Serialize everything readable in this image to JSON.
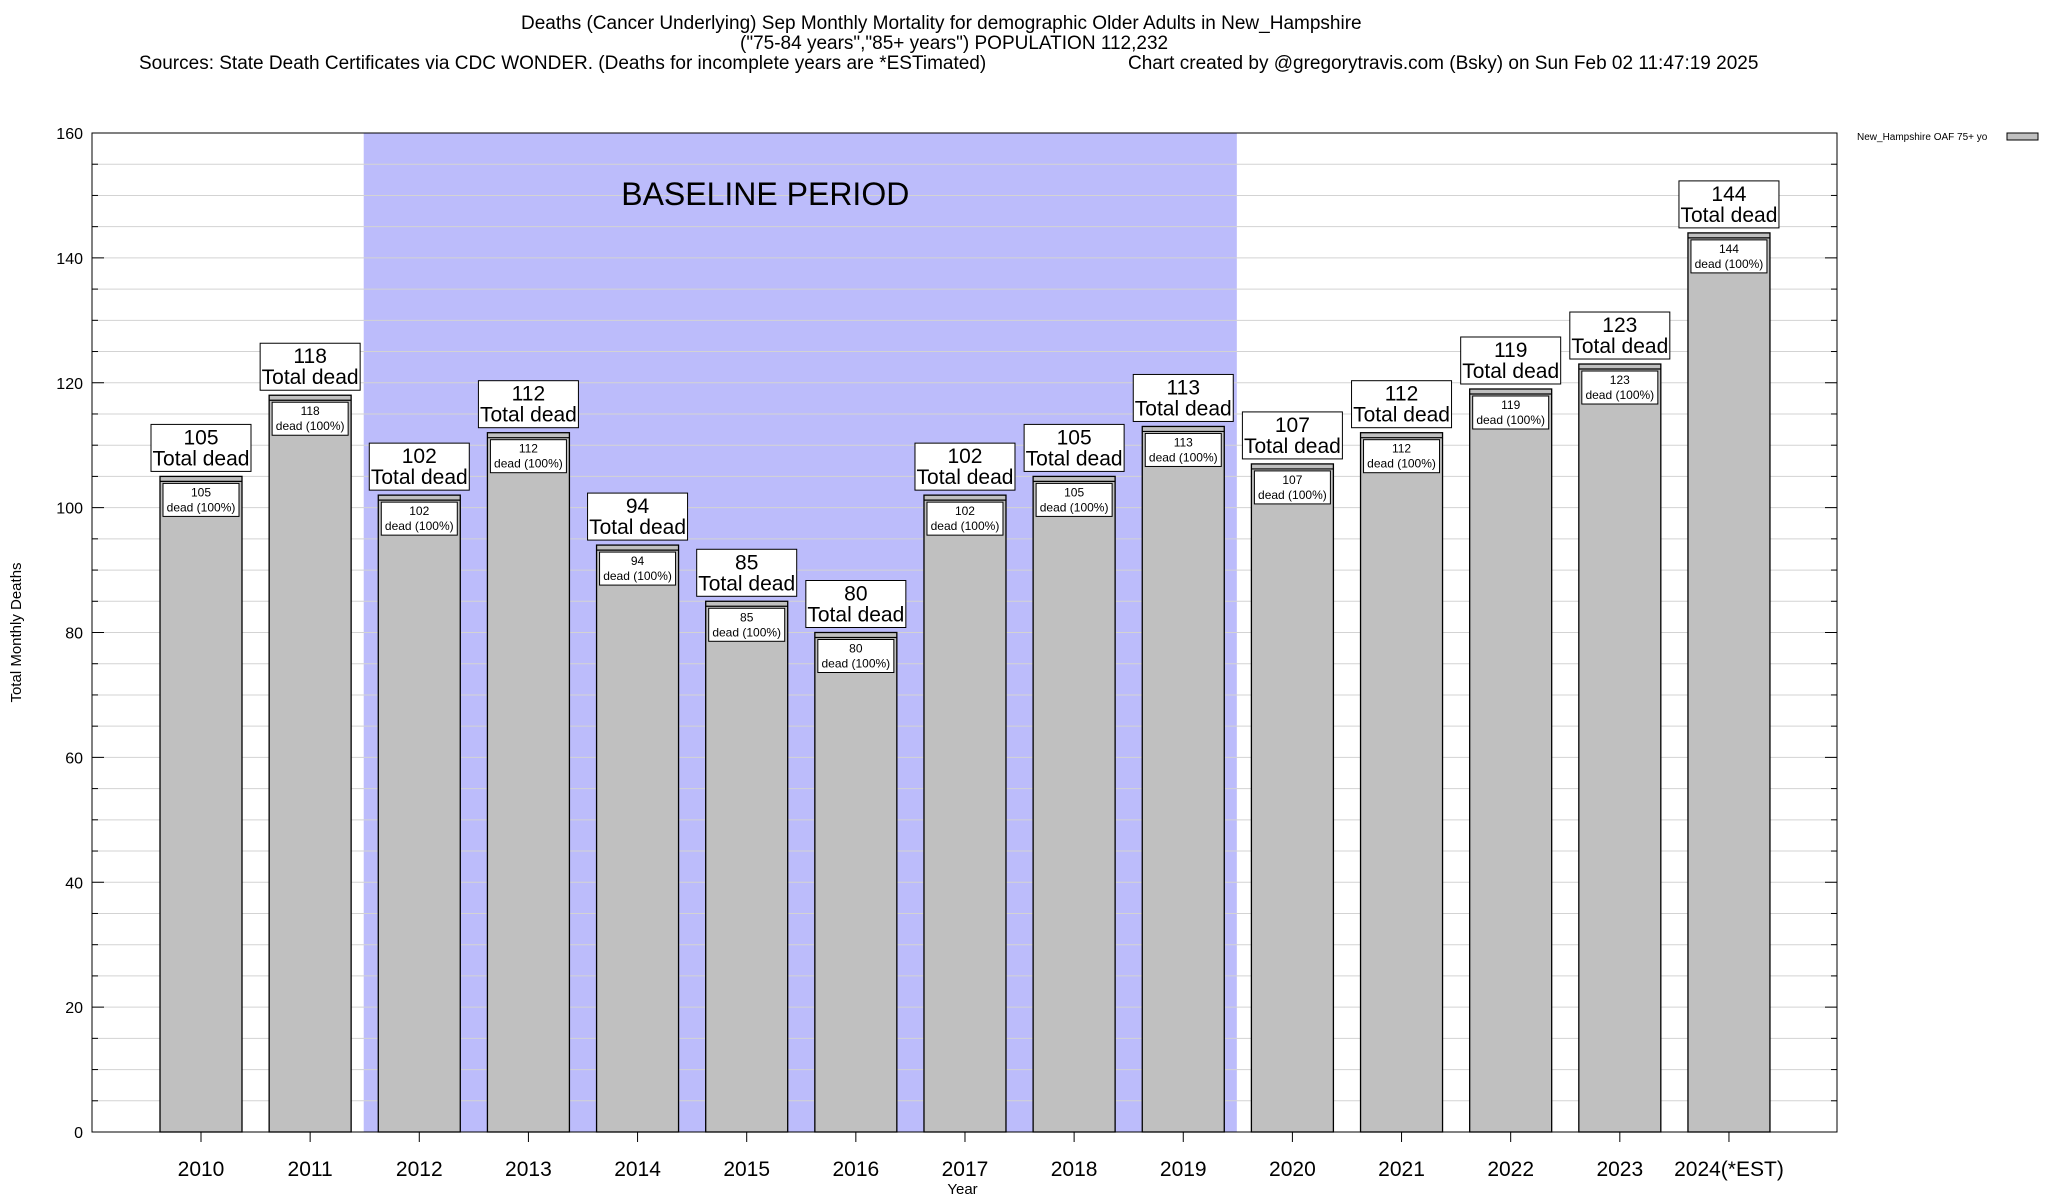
{
  "chart_data": {
    "type": "bar",
    "title": "Deaths (Cancer Underlying) Sep Monthly Mortality for demographic Older Adults in New_Hampshire",
    "subtitle": "(\"75-84 years\",\"85+ years\") POPULATION 112,232",
    "source_text": "Sources: State Death Certificates via CDC WONDER. (Deaths for incomplete years are *ESTimated)",
    "credit_text": "Chart created by @gregorytravis.com (Bsky) on Sun Feb 02 11:47:19 2025",
    "xlabel": "Year",
    "ylabel": "Total Monthly Deaths",
    "ylim": [
      0,
      160
    ],
    "y_ticks": [
      0,
      20,
      40,
      60,
      80,
      100,
      120,
      140,
      160
    ],
    "grid": "horizontal",
    "legend_position": "top-right",
    "categories": [
      "2010",
      "2011",
      "2012",
      "2013",
      "2014",
      "2015",
      "2016",
      "2017",
      "2018",
      "2019",
      "2020",
      "2021",
      "2022",
      "2023",
      "2024(*EST)"
    ],
    "series": [
      {
        "name": "New_Hampshire OAF 75+ yo",
        "values": [
          105,
          118,
          102,
          112,
          94,
          85,
          80,
          102,
          105,
          113,
          107,
          112,
          119,
          123,
          144
        ]
      }
    ],
    "total_label_suffix": "Total dead",
    "inner_label_suffix": "dead (100%)",
    "baseline": {
      "label": "BASELINE PERIOD",
      "from": "2012",
      "to": "2019",
      "color": "#bcbcfb"
    },
    "colors": {
      "bar_fill": "#c0c0c0",
      "bar_stroke": "#000000",
      "grid": "#d3d3d3"
    }
  }
}
